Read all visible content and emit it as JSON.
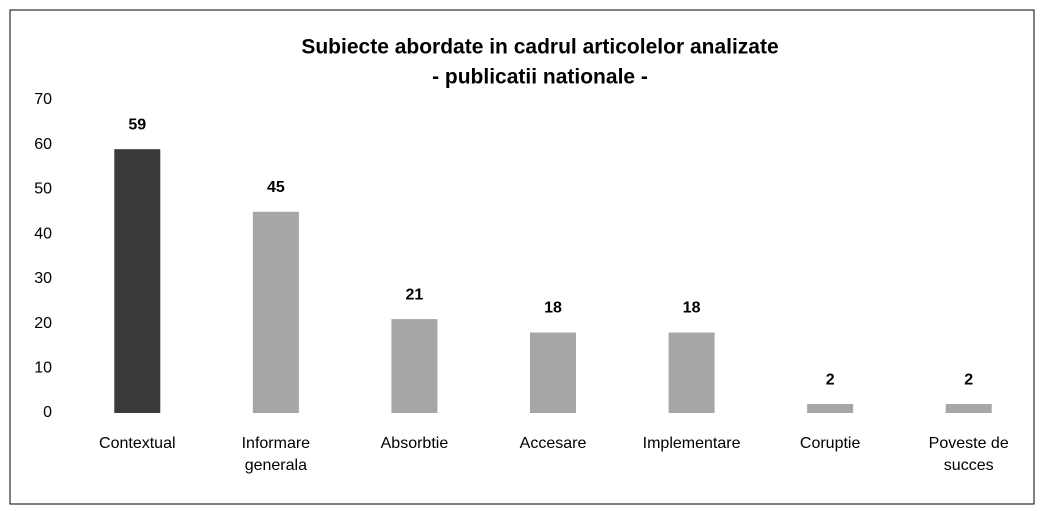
{
  "chart_data": {
    "type": "bar",
    "title": "Subiecte abordate in cadrul articolelor analizate",
    "subtitle": "- publicatii nationale -",
    "categories": [
      "Contextual",
      "Informare generala",
      "Absorbtie",
      "Accesare",
      "Implementare",
      "Coruptie",
      "Poveste de succes"
    ],
    "values": [
      59,
      45,
      21,
      18,
      18,
      2,
      2
    ],
    "colors": [
      "#3a3a3a",
      "#a6a6a6",
      "#a6a6a6",
      "#a6a6a6",
      "#a6a6a6",
      "#a6a6a6",
      "#a6a6a6"
    ],
    "ylim": [
      0,
      70
    ],
    "yticks": [
      0,
      10,
      20,
      30,
      40,
      50,
      60,
      70
    ],
    "grid": false
  }
}
